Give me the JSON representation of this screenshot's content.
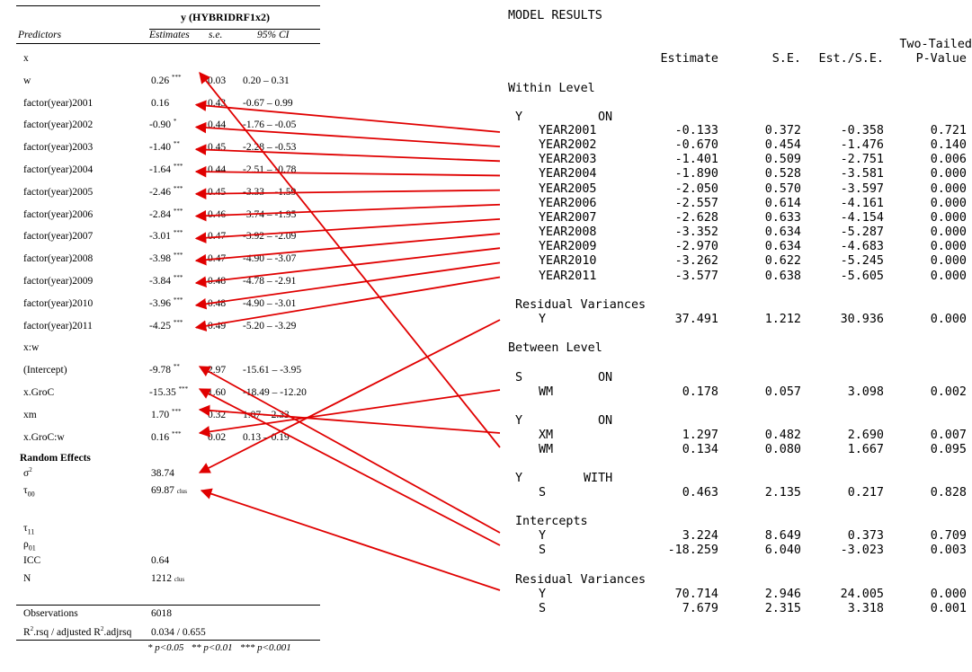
{
  "table": {
    "model_title": "y (HYBRIDRF1x2)",
    "headers": {
      "predictors": "Predictors",
      "estimates": "Estimates",
      "se": "s.e.",
      "ci": "95% CI"
    },
    "rows": [
      {
        "label": "x",
        "est": "",
        "stars": "",
        "se": "",
        "ci": ""
      },
      {
        "label": "w",
        "est": "0.26",
        "stars": "***",
        "se": "0.03",
        "ci": "0.20 – 0.31"
      },
      {
        "label": "factor(year)2001",
        "est": "0.16",
        "stars": "",
        "se": "0.43",
        "ci": "-0.67 – 0.99"
      },
      {
        "label": "factor(year)2002",
        "est": "-0.90",
        "stars": "*",
        "se": "0.44",
        "ci": "-1.76 – -0.05"
      },
      {
        "label": "factor(year)2003",
        "est": "-1.40",
        "stars": "**",
        "se": "0.45",
        "ci": "-2.28 – -0.53"
      },
      {
        "label": "factor(year)2004",
        "est": "-1.64",
        "stars": "***",
        "se": "0.44",
        "ci": "-2.51 – -0.78"
      },
      {
        "label": "factor(year)2005",
        "est": "-2.46",
        "stars": "***",
        "se": "0.45",
        "ci": "-3.33 – -1.59"
      },
      {
        "label": "factor(year)2006",
        "est": "-2.84",
        "stars": "***",
        "se": "0.46",
        "ci": "-3.74 – -1.95"
      },
      {
        "label": "factor(year)2007",
        "est": "-3.01",
        "stars": "***",
        "se": "0.47",
        "ci": "-3.92 – -2.09"
      },
      {
        "label": "factor(year)2008",
        "est": "-3.98",
        "stars": "***",
        "se": "0.47",
        "ci": "-4.90 – -3.07"
      },
      {
        "label": "factor(year)2009",
        "est": "-3.84",
        "stars": "***",
        "se": "0.48",
        "ci": "-4.78 – -2.91"
      },
      {
        "label": "factor(year)2010",
        "est": "-3.96",
        "stars": "***",
        "se": "0.48",
        "ci": "-4.90 – -3.01"
      },
      {
        "label": "factor(year)2011",
        "est": "-4.25",
        "stars": "***",
        "se": "0.49",
        "ci": "-5.20 – -3.29"
      },
      {
        "label": "x:w",
        "est": "",
        "stars": "",
        "se": "",
        "ci": ""
      },
      {
        "label": "(Intercept)",
        "est": "-9.78",
        "stars": "**",
        "se": "2.97",
        "ci": "-15.61 – -3.95"
      },
      {
        "label": "x.GroC",
        "est": "-15.35",
        "stars": "***",
        "se": "1.60",
        "ci": "-18.49 – -12.20"
      },
      {
        "label": "xm",
        "est": "1.70",
        "stars": "***",
        "se": "0.32",
        "ci": "1.07 – 2.33"
      },
      {
        "label": "x.GroC:w",
        "est": "0.16",
        "stars": "***",
        "se": "0.02",
        "ci": "0.13 – 0.19"
      }
    ],
    "random_effects_title": "Random Effects",
    "random_effects": [
      {
        "label": "σ",
        "sup": "2",
        "sub": "",
        "val": "38.74",
        "suffix": ""
      },
      {
        "label": "τ",
        "sup": "",
        "sub": "00",
        "val": "69.87",
        "suffix": "clus"
      },
      {
        "label": "τ",
        "sup": "",
        "sub": "11",
        "val": "",
        "suffix": ""
      },
      {
        "label": "ρ",
        "sup": "",
        "sub": "01",
        "val": "",
        "suffix": ""
      },
      {
        "label": "ICC",
        "sup": "",
        "sub": "",
        "val": "0.64",
        "suffix": ""
      },
      {
        "label": "N",
        "sup": "",
        "sub": "",
        "val": "1212",
        "suffix": "clus"
      }
    ],
    "observations_label": "Observations",
    "observations": "6018",
    "r2_label_a": "R",
    "r2_label_b": ".rsq / adjusted R",
    "r2_label_c": ".adjrsq",
    "r2_sup": "2",
    "r2_value": "0.034 / 0.655",
    "footnote": "* p<0.05   ** p<0.01   *** p<0.001"
  },
  "mplus": {
    "title": "MODEL RESULTS",
    "col_headers": {
      "estimate": "Estimate",
      "se": "S.E.",
      "est_se": "Est./S.E.",
      "twotailed": "Two-Tailed",
      "pvalue": "P-Value"
    },
    "within_level": "Within Level",
    "y_on": {
      "lhs": "Y",
      "op": "ON"
    },
    "within_rows": [
      {
        "name": "YEAR2001",
        "est": "-0.133",
        "se": "0.372",
        "z": "-0.358",
        "p": "0.721"
      },
      {
        "name": "YEAR2002",
        "est": "-0.670",
        "se": "0.454",
        "z": "-1.476",
        "p": "0.140"
      },
      {
        "name": "YEAR2003",
        "est": "-1.401",
        "se": "0.509",
        "z": "-2.751",
        "p": "0.006"
      },
      {
        "name": "YEAR2004",
        "est": "-1.890",
        "se": "0.528",
        "z": "-3.581",
        "p": "0.000"
      },
      {
        "name": "YEAR2005",
        "est": "-2.050",
        "se": "0.570",
        "z": "-3.597",
        "p": "0.000"
      },
      {
        "name": "YEAR2006",
        "est": "-2.557",
        "se": "0.614",
        "z": "-4.161",
        "p": "0.000"
      },
      {
        "name": "YEAR2007",
        "est": "-2.628",
        "se": "0.633",
        "z": "-4.154",
        "p": "0.000"
      },
      {
        "name": "YEAR2008",
        "est": "-3.352",
        "se": "0.634",
        "z": "-5.287",
        "p": "0.000"
      },
      {
        "name": "YEAR2009",
        "est": "-2.970",
        "se": "0.634",
        "z": "-4.683",
        "p": "0.000"
      },
      {
        "name": "YEAR2010",
        "est": "-3.262",
        "se": "0.622",
        "z": "-5.245",
        "p": "0.000"
      },
      {
        "name": "YEAR2011",
        "est": "-3.577",
        "se": "0.638",
        "z": "-5.605",
        "p": "0.000"
      }
    ],
    "residual_variances": "Residual Variances",
    "within_resid": {
      "name": "Y",
      "est": "37.491",
      "se": "1.212",
      "z": "30.936",
      "p": "0.000"
    },
    "between_level": "Between Level",
    "s_on": {
      "lhs": "S",
      "op": "ON"
    },
    "s_rows": [
      {
        "name": "WM",
        "est": "0.178",
        "se": "0.057",
        "z": "3.098",
        "p": "0.002"
      }
    ],
    "y_on2": {
      "lhs": "Y",
      "op": "ON"
    },
    "y_rows": [
      {
        "name": "XM",
        "est": "1.297",
        "se": "0.482",
        "z": "2.690",
        "p": "0.007"
      },
      {
        "name": "WM",
        "est": "0.134",
        "se": "0.080",
        "z": "1.667",
        "p": "0.095"
      }
    ],
    "y_with": {
      "lhs": "Y",
      "op": "WITH"
    },
    "with_rows": [
      {
        "name": "S",
        "est": "0.463",
        "se": "2.135",
        "z": "0.217",
        "p": "0.828"
      }
    ],
    "intercepts": "Intercepts",
    "int_rows": [
      {
        "name": "Y",
        "est": "3.224",
        "se": "8.649",
        "z": "0.373",
        "p": "0.709"
      },
      {
        "name": "S",
        "est": "-18.259",
        "se": "6.040",
        "z": "-3.023",
        "p": "0.003"
      }
    ],
    "residual_variances2": "Residual Variances",
    "resid_rows": [
      {
        "name": "Y",
        "est": "70.714",
        "se": "2.946",
        "z": "24.005",
        "p": "0.000"
      },
      {
        "name": "S",
        "est": "7.679",
        "se": "2.315",
        "z": "3.318",
        "p": "0.001"
      }
    ]
  },
  "colors": {
    "arrow": "#e00000"
  }
}
